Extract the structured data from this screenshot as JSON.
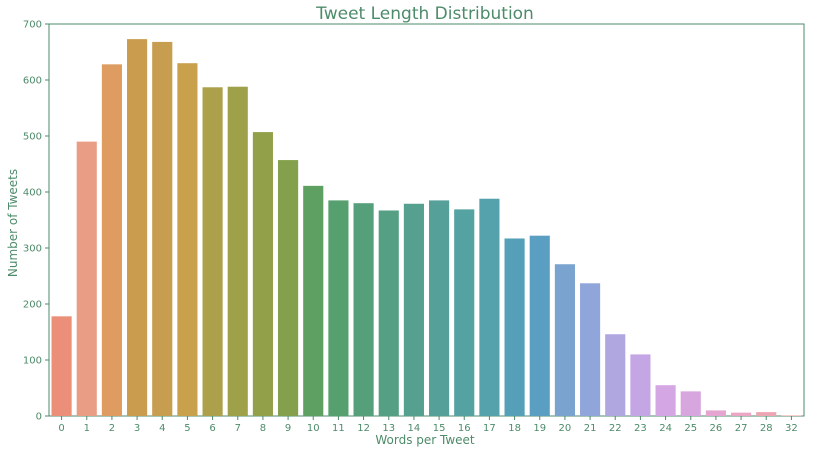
{
  "chart_data": {
    "type": "bar",
    "title": "Tweet Length Distribution",
    "xlabel": "Words per Tweet",
    "ylabel": "Number of Tweets",
    "ylim": [
      0,
      700
    ],
    "yticks": [
      0,
      100,
      200,
      300,
      400,
      500,
      600,
      700
    ],
    "categories": [
      "0",
      "1",
      "2",
      "3",
      "4",
      "5",
      "6",
      "7",
      "8",
      "9",
      "10",
      "11",
      "12",
      "13",
      "14",
      "15",
      "16",
      "17",
      "18",
      "19",
      "20",
      "21",
      "22",
      "23",
      "24",
      "25",
      "26",
      "27",
      "28",
      "32"
    ],
    "values": [
      178,
      490,
      628,
      673,
      668,
      630,
      587,
      588,
      507,
      457,
      411,
      385,
      380,
      367,
      379,
      385,
      369,
      388,
      317,
      322,
      271,
      237,
      146,
      110,
      55,
      44,
      10,
      6,
      7,
      1
    ],
    "colors": [
      "#eb8f79",
      "#e99d85",
      "#de9c60",
      "#c99c4e",
      "#c79d50",
      "#c9a04c",
      "#ada04a",
      "#9fa04a",
      "#93a04a",
      "#85a04c",
      "#5ea062",
      "#55a06e",
      "#55a07a",
      "#55a084",
      "#55a08e",
      "#55a099",
      "#55a2a2",
      "#55a2ac",
      "#55a0b8",
      "#5a9fc2",
      "#7aa3cf",
      "#90a6da",
      "#b0a6e0",
      "#c5a6e4",
      "#d5a6e4",
      "#d8a6df",
      "#e4a6d0",
      "#eaa6c2",
      "#eca6b3",
      "#f0a6a6"
    ],
    "grid": false,
    "legend": "none"
  }
}
